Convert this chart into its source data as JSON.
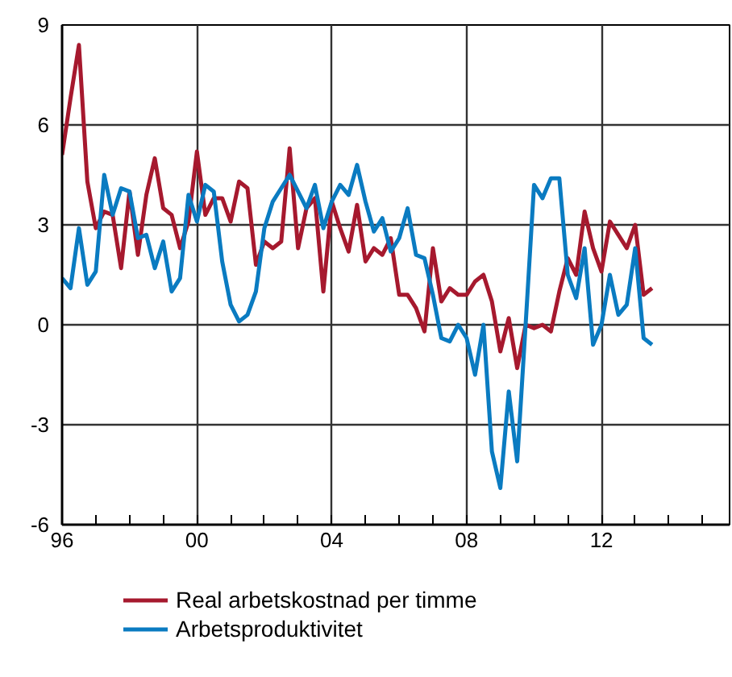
{
  "chart_data": {
    "type": "line",
    "x": [
      1996.0,
      1996.25,
      1996.5,
      1996.75,
      1997.0,
      1997.25,
      1997.5,
      1997.75,
      1998.0,
      1998.25,
      1998.5,
      1998.75,
      1999.0,
      1999.25,
      1999.5,
      1999.75,
      2000.0,
      2000.25,
      2000.5,
      2000.75,
      2001.0,
      2001.25,
      2001.5,
      2001.75,
      2002.0,
      2002.25,
      2002.5,
      2002.75,
      2003.0,
      2003.25,
      2003.5,
      2003.75,
      2004.0,
      2004.25,
      2004.5,
      2004.75,
      2005.0,
      2005.25,
      2005.5,
      2005.75,
      2006.0,
      2006.25,
      2006.5,
      2006.75,
      2007.0,
      2007.25,
      2007.5,
      2007.75,
      2008.0,
      2008.25,
      2008.5,
      2008.75,
      2009.0,
      2009.25,
      2009.5,
      2009.75,
      2010.0,
      2010.25,
      2010.5,
      2010.75,
      2011.0,
      2011.25,
      2011.5,
      2011.75,
      2012.0,
      2012.25,
      2012.5,
      2012.75,
      2013.0,
      2013.25,
      2013.5
    ],
    "series": [
      {
        "name": "Real arbetskostnad per timme",
        "color": "#a6192e",
        "values": [
          5.1,
          6.8,
          8.4,
          4.3,
          2.9,
          3.4,
          3.3,
          1.7,
          4.0,
          2.1,
          3.9,
          5.0,
          3.5,
          3.3,
          2.3,
          3.1,
          5.2,
          3.3,
          3.8,
          3.8,
          3.1,
          4.3,
          4.1,
          1.8,
          2.5,
          2.3,
          2.5,
          5.3,
          2.3,
          3.5,
          3.8,
          1.0,
          3.7,
          2.9,
          2.2,
          3.6,
          1.9,
          2.3,
          2.1,
          2.6,
          0.9,
          0.9,
          0.5,
          -0.2,
          2.3,
          0.7,
          1.1,
          0.9,
          0.9,
          1.3,
          1.5,
          0.7,
          -0.8,
          0.2,
          -1.3,
          0.0,
          -0.1,
          0.0,
          -0.2,
          1.0,
          2.0,
          1.5,
          3.4,
          2.3,
          1.6,
          3.1,
          2.7,
          2.3,
          3.0,
          0.9,
          1.1
        ]
      },
      {
        "name": "Arbetsproduktivitet",
        "color": "#0a7bc1",
        "values": [
          1.4,
          1.1,
          2.9,
          1.2,
          1.6,
          4.5,
          3.3,
          4.1,
          4.0,
          2.6,
          2.7,
          1.7,
          2.5,
          1.0,
          1.4,
          3.9,
          3.1,
          4.2,
          4.0,
          1.9,
          0.6,
          0.1,
          0.3,
          1.0,
          2.9,
          3.7,
          4.1,
          4.5,
          4.0,
          3.5,
          4.2,
          2.9,
          3.7,
          4.2,
          3.9,
          4.8,
          3.7,
          2.8,
          3.2,
          2.2,
          2.6,
          3.5,
          2.1,
          2.0,
          0.9,
          -0.4,
          -0.5,
          0.0,
          -0.4,
          -1.5,
          0.0,
          -3.8,
          -4.9,
          -2.0,
          -4.1,
          0.0,
          4.2,
          3.8,
          4.4,
          4.4,
          1.5,
          0.8,
          2.3,
          -0.6,
          0.0,
          1.5,
          0.3,
          0.6,
          2.3,
          -0.4,
          -0.6
        ]
      }
    ],
    "xlim": [
      1996,
      2015.8
    ],
    "xticks": [
      {
        "value": 1996,
        "label": "96"
      },
      {
        "value": 1997,
        "label": null
      },
      {
        "value": 1998,
        "label": null
      },
      {
        "value": 1999,
        "label": null
      },
      {
        "value": 2000,
        "label": "00"
      },
      {
        "value": 2001,
        "label": null
      },
      {
        "value": 2002,
        "label": null
      },
      {
        "value": 2003,
        "label": null
      },
      {
        "value": 2004,
        "label": "04"
      },
      {
        "value": 2005,
        "label": null
      },
      {
        "value": 2006,
        "label": null
      },
      {
        "value": 2007,
        "label": null
      },
      {
        "value": 2008,
        "label": "08"
      },
      {
        "value": 2009,
        "label": null
      },
      {
        "value": 2010,
        "label": null
      },
      {
        "value": 2011,
        "label": null
      },
      {
        "value": 2012,
        "label": "12"
      },
      {
        "value": 2013,
        "label": null
      },
      {
        "value": 2014,
        "label": null
      },
      {
        "value": 2015,
        "label": null
      }
    ],
    "ylim": [
      -6,
      9
    ],
    "yticks": [
      -6,
      -3,
      0,
      3,
      6,
      9
    ],
    "grid": true,
    "legend": "bottom",
    "line_style": "solid"
  }
}
